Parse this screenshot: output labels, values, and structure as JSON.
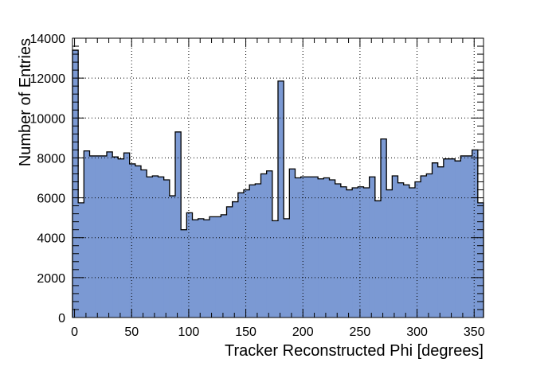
{
  "chart_data": {
    "type": "bar",
    "xlabel": "Tracker Reconstructed Phi [degrees]",
    "ylabel": "Number of Entries",
    "xlim": [
      -1.8,
      358.2
    ],
    "ylim": [
      0,
      14000
    ],
    "bin_width": 5,
    "bin_start": -1.8,
    "grid": true,
    "fill_color": "#7b99d3",
    "line_color": "#000000",
    "xticks": [
      0,
      50,
      100,
      150,
      200,
      250,
      300,
      350
    ],
    "yticks": [
      0,
      2000,
      4000,
      6000,
      8000,
      10000,
      12000,
      14000
    ],
    "values": [
      13400,
      5750,
      8350,
      8100,
      8100,
      8100,
      8300,
      8050,
      7950,
      8250,
      7700,
      7600,
      7400,
      7050,
      7100,
      7050,
      6900,
      6100,
      9300,
      4400,
      5250,
      4900,
      4950,
      4900,
      5050,
      5050,
      5150,
      5550,
      5800,
      6250,
      6400,
      6650,
      6700,
      7200,
      7350,
      4850,
      11850,
      4950,
      7450,
      7000,
      7050,
      7050,
      7050,
      6950,
      7000,
      6900,
      6700,
      6550,
      6400,
      6500,
      6550,
      6500,
      7050,
      5850,
      8950,
      6400,
      7100,
      6750,
      6650,
      6500,
      6800,
      7100,
      7200,
      7750,
      7550,
      7950,
      7950,
      7850,
      8100,
      8100,
      8400,
      5750
    ]
  }
}
